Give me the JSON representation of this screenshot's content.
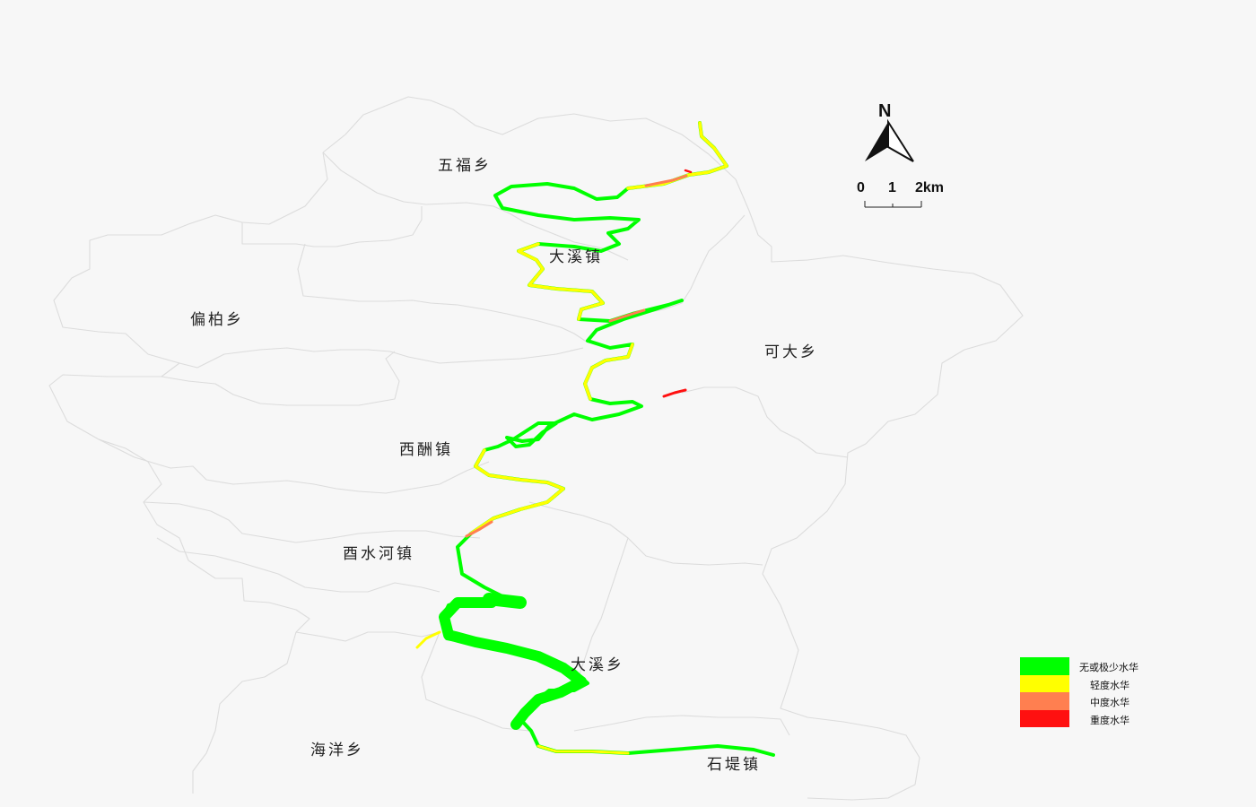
{
  "map": {
    "townships": [
      {
        "id": "wufu",
        "name": "五福乡"
      },
      {
        "id": "daxi-town",
        "name": "大溪镇"
      },
      {
        "id": "pianbai",
        "name": "偏柏乡"
      },
      {
        "id": "keda",
        "name": "可大乡"
      },
      {
        "id": "xichou",
        "name": "西酬镇"
      },
      {
        "id": "xishuihe",
        "name": "酉水河镇"
      },
      {
        "id": "daxi-xiang",
        "name": "大溪乡"
      },
      {
        "id": "haiyang",
        "name": "海洋乡"
      },
      {
        "id": "shidi",
        "name": "石堤镇"
      }
    ],
    "north_arrow": {
      "label": "N",
      "icon": "north-arrow-icon"
    },
    "scale_bar": {
      "ticks": [
        "0",
        "1",
        "2km"
      ]
    }
  },
  "legend": {
    "items": [
      {
        "label": "无或极少水华",
        "color": "#00ff00"
      },
      {
        "label": "轻度水华",
        "color": "#ffff00"
      },
      {
        "label": "中度水华",
        "color": "#ff7f50"
      },
      {
        "label": "重度水华",
        "color": "#ff1010"
      }
    ]
  }
}
